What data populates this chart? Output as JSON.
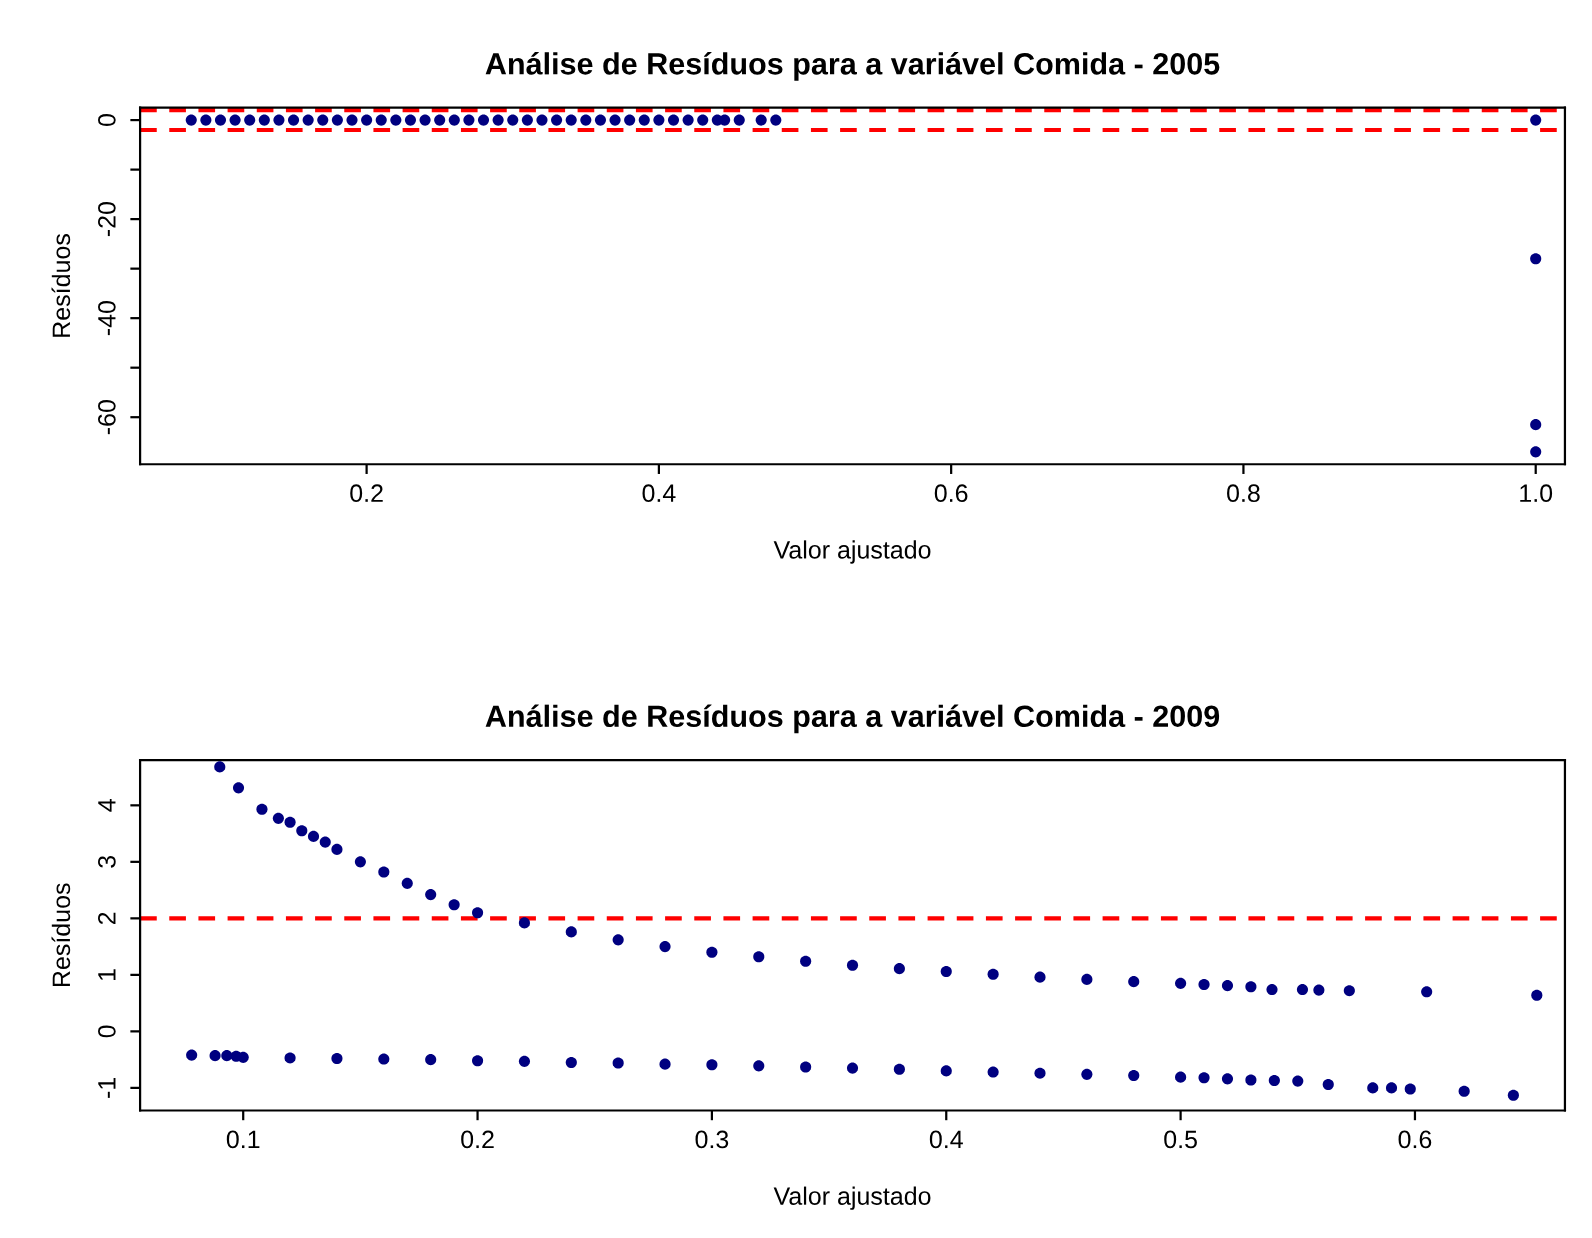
{
  "chart_data": [
    {
      "type": "scatter",
      "title": "Análise de Resíduos para a variável Comida - 2005",
      "xlabel": "Valor ajustado",
      "ylabel": "Resíduos",
      "marker": "circle",
      "grid": false,
      "legend": false,
      "xlim": [
        0.045,
        1.02
      ],
      "ylim": [
        -69.5,
        2.5
      ],
      "xticks": [
        0.2,
        0.4,
        0.6,
        0.8,
        {
          "value": 1.0,
          "label": "1.0"
        }
      ],
      "yticks": [
        0,
        {
          "value": -10,
          "label": null
        },
        -20,
        {
          "value": -30,
          "label": null
        },
        -40,
        {
          "value": -50,
          "label": null
        },
        -60
      ],
      "series": [
        {
          "color": "#000080",
          "x": [
            0.08,
            0.09,
            0.1,
            0.11,
            0.12,
            0.13,
            0.14,
            0.15,
            0.16,
            0.17,
            0.18,
            0.19,
            0.2,
            0.21,
            0.22,
            0.23,
            0.24,
            0.25,
            0.26,
            0.27,
            0.28,
            0.29,
            0.3,
            0.31,
            0.32,
            0.33,
            0.34,
            0.35,
            0.36,
            0.37,
            0.38,
            0.39,
            0.4,
            0.41,
            0.42,
            0.43,
            0.44,
            0.445,
            0.455,
            0.47,
            0.48,
            1.0,
            1.0,
            1.0,
            1.0
          ],
          "values": [
            0,
            0,
            0,
            0,
            0,
            0,
            0,
            0,
            0,
            0,
            0,
            0,
            0,
            0,
            0,
            0,
            0,
            0,
            0,
            0,
            0,
            0,
            0,
            0,
            0,
            0,
            0,
            0,
            0,
            0,
            0,
            0,
            0,
            0,
            0,
            0,
            0,
            0,
            0,
            0,
            0,
            0,
            -28,
            -61.5,
            -67
          ]
        }
      ],
      "ref_lines": [
        {
          "axis": "y",
          "value": 2,
          "color": "#ff0000",
          "line_style": "dashed"
        },
        {
          "axis": "y",
          "value": -2,
          "color": "#ff0000",
          "line_style": "dashed"
        }
      ]
    },
    {
      "type": "scatter",
      "title": "Análise de Resíduos para a variável Comida - 2009",
      "xlabel": "Valor ajustado",
      "ylabel": "Resíduos",
      "marker": "circle",
      "grid": false,
      "legend": false,
      "xlim": [
        0.056,
        0.664
      ],
      "ylim": [
        -1.4,
        4.8
      ],
      "xticks": [
        0.1,
        0.2,
        0.3,
        0.4,
        0.5,
        0.6
      ],
      "yticks": [
        -1,
        0,
        1,
        2,
        3,
        4
      ],
      "series": [
        {
          "color": "#000080",
          "x": [
            0.09,
            0.098,
            0.108,
            0.115,
            0.12,
            0.125,
            0.13,
            0.135,
            0.14,
            0.15,
            0.16,
            0.17,
            0.18,
            0.19,
            0.2,
            0.22,
            0.24,
            0.26,
            0.28,
            0.3,
            0.32,
            0.34,
            0.36,
            0.38,
            0.4,
            0.42,
            0.44,
            0.46,
            0.48,
            0.5,
            0.51,
            0.52,
            0.53,
            0.539,
            0.552,
            0.559,
            0.572,
            0.605,
            0.652
          ],
          "values": [
            4.68,
            4.31,
            3.93,
            3.77,
            3.7,
            3.55,
            3.45,
            3.35,
            3.22,
            3.0,
            2.82,
            2.62,
            2.42,
            2.24,
            2.1,
            1.92,
            1.76,
            1.62,
            1.5,
            1.4,
            1.32,
            1.24,
            1.17,
            1.11,
            1.06,
            1.01,
            0.96,
            0.92,
            0.88,
            0.85,
            0.83,
            0.81,
            0.79,
            0.74,
            0.74,
            0.73,
            0.72,
            0.7,
            0.64
          ]
        },
        {
          "color": "#000080",
          "x": [
            0.078,
            0.088,
            0.093,
            0.097,
            0.1,
            0.12,
            0.14,
            0.16,
            0.18,
            0.2,
            0.22,
            0.24,
            0.26,
            0.28,
            0.3,
            0.32,
            0.34,
            0.36,
            0.38,
            0.4,
            0.42,
            0.44,
            0.46,
            0.48,
            0.5,
            0.51,
            0.52,
            0.53,
            0.54,
            0.55,
            0.563,
            0.582,
            0.59,
            0.598,
            0.621,
            0.642
          ],
          "values": [
            -0.42,
            -0.43,
            -0.43,
            -0.44,
            -0.46,
            -0.47,
            -0.48,
            -0.49,
            -0.5,
            -0.52,
            -0.53,
            -0.55,
            -0.56,
            -0.58,
            -0.59,
            -0.61,
            -0.63,
            -0.65,
            -0.67,
            -0.7,
            -0.72,
            -0.74,
            -0.76,
            -0.78,
            -0.81,
            -0.82,
            -0.84,
            -0.86,
            -0.87,
            -0.88,
            -0.94,
            -1.0,
            -1.0,
            -1.02,
            -1.06,
            -1.13
          ]
        }
      ],
      "ref_lines": [
        {
          "axis": "y",
          "value": 2,
          "color": "#ff0000",
          "line_style": "dashed"
        }
      ]
    }
  ]
}
